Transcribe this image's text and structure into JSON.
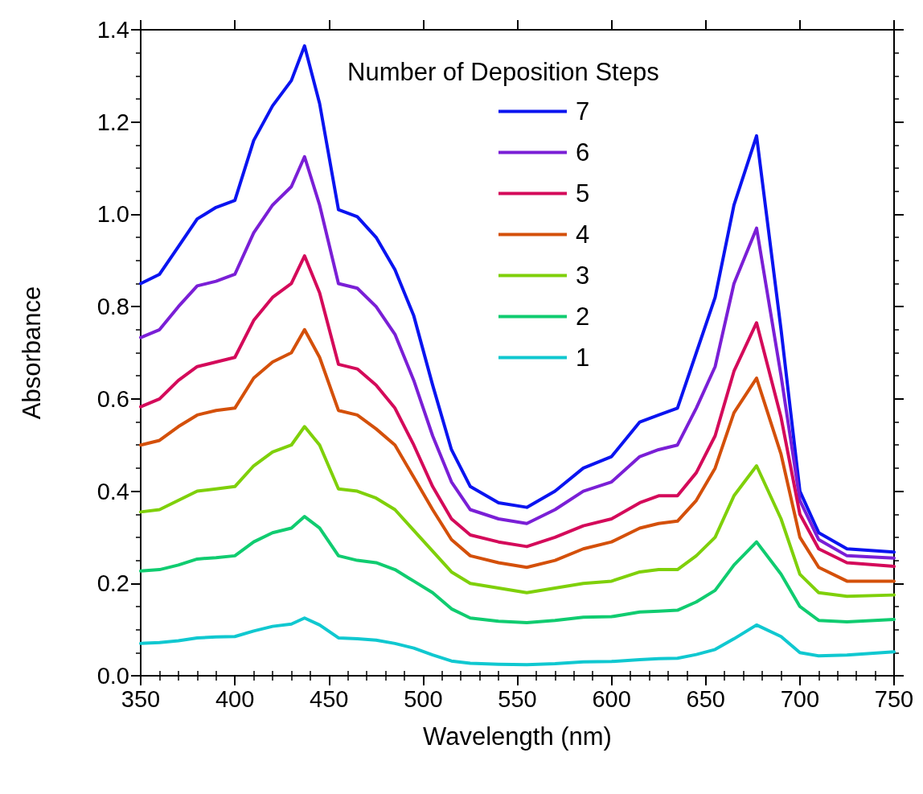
{
  "chart_data": {
    "type": "line",
    "xlabel": "Wavelength (nm)",
    "ylabel": "Absorbance",
    "legend_title": "Number of Deposition Steps",
    "legend": "top right",
    "grid": false,
    "marker": "none",
    "line_style": "solid",
    "x": [
      350,
      360,
      370,
      380,
      390,
      400,
      410,
      420,
      430,
      437,
      445,
      455,
      465,
      475,
      485,
      495,
      505,
      515,
      525,
      540,
      555,
      570,
      585,
      600,
      615,
      625,
      635,
      645,
      655,
      665,
      677,
      690,
      700,
      710,
      725,
      750
    ],
    "xlim": [
      350,
      750
    ],
    "xticks": [
      350,
      400,
      450,
      500,
      550,
      600,
      650,
      700,
      750
    ],
    "ylim": [
      0,
      1.4
    ],
    "yticks": [
      {
        "value": 0,
        "label": "0.0"
      },
      {
        "value": 0.2,
        "label": "0.2"
      },
      {
        "value": 0.4,
        "label": "0.4"
      },
      {
        "value": 0.6,
        "label": "0.6"
      },
      {
        "value": 0.8,
        "label": "0.8"
      },
      {
        "value": 1,
        "label": "1.0"
      },
      {
        "value": 1.2,
        "label": "1.2"
      },
      {
        "value": 1.4,
        "label": "1.4"
      }
    ],
    "series": [
      {
        "name": "7",
        "color": "#0a14f0",
        "values": [
          0.85,
          0.87,
          0.93,
          0.99,
          1.015,
          1.03,
          1.16,
          1.235,
          1.29,
          1.365,
          1.24,
          1.01,
          0.995,
          0.95,
          0.88,
          0.78,
          0.63,
          0.49,
          0.41,
          0.375,
          0.365,
          0.4,
          0.45,
          0.475,
          0.55,
          0.565,
          0.58,
          0.7,
          0.82,
          1.02,
          1.17,
          0.75,
          0.4,
          0.31,
          0.275,
          0.268
        ]
      },
      {
        "name": "6",
        "color": "#7a1fd6",
        "values": [
          0.733,
          0.75,
          0.8,
          0.845,
          0.855,
          0.87,
          0.96,
          1.02,
          1.06,
          1.125,
          1.02,
          0.85,
          0.84,
          0.8,
          0.74,
          0.64,
          0.52,
          0.42,
          0.36,
          0.34,
          0.33,
          0.36,
          0.4,
          0.42,
          0.475,
          0.49,
          0.5,
          0.58,
          0.67,
          0.85,
          0.97,
          0.65,
          0.38,
          0.295,
          0.26,
          0.255
        ]
      },
      {
        "name": "5",
        "color": "#d40a5a",
        "values": [
          0.583,
          0.6,
          0.64,
          0.67,
          0.68,
          0.69,
          0.77,
          0.82,
          0.85,
          0.91,
          0.83,
          0.675,
          0.665,
          0.63,
          0.58,
          0.5,
          0.41,
          0.34,
          0.305,
          0.29,
          0.28,
          0.3,
          0.325,
          0.34,
          0.375,
          0.39,
          0.39,
          0.44,
          0.52,
          0.66,
          0.765,
          0.56,
          0.35,
          0.275,
          0.245,
          0.237
        ]
      },
      {
        "name": "4",
        "color": "#d4500a",
        "values": [
          0.5,
          0.51,
          0.54,
          0.565,
          0.575,
          0.58,
          0.645,
          0.68,
          0.7,
          0.75,
          0.69,
          0.575,
          0.565,
          0.535,
          0.5,
          0.43,
          0.36,
          0.295,
          0.26,
          0.245,
          0.235,
          0.25,
          0.275,
          0.29,
          0.32,
          0.33,
          0.335,
          0.38,
          0.45,
          0.57,
          0.645,
          0.48,
          0.3,
          0.235,
          0.205,
          0.205
        ]
      },
      {
        "name": "3",
        "color": "#7fd00a",
        "values": [
          0.355,
          0.36,
          0.38,
          0.4,
          0.405,
          0.41,
          0.455,
          0.485,
          0.5,
          0.54,
          0.5,
          0.405,
          0.4,
          0.385,
          0.36,
          0.315,
          0.27,
          0.225,
          0.2,
          0.19,
          0.18,
          0.19,
          0.2,
          0.205,
          0.225,
          0.23,
          0.23,
          0.26,
          0.3,
          0.39,
          0.455,
          0.34,
          0.22,
          0.18,
          0.172,
          0.175
        ]
      },
      {
        "name": "2",
        "color": "#10cc70",
        "values": [
          0.227,
          0.23,
          0.24,
          0.253,
          0.256,
          0.26,
          0.29,
          0.31,
          0.32,
          0.345,
          0.32,
          0.26,
          0.25,
          0.245,
          0.23,
          0.205,
          0.18,
          0.145,
          0.125,
          0.118,
          0.115,
          0.12,
          0.127,
          0.128,
          0.138,
          0.14,
          0.142,
          0.16,
          0.185,
          0.24,
          0.29,
          0.22,
          0.15,
          0.12,
          0.117,
          0.122
        ]
      },
      {
        "name": "1",
        "color": "#10c8d0",
        "values": [
          0.07,
          0.072,
          0.076,
          0.082,
          0.084,
          0.085,
          0.097,
          0.107,
          0.112,
          0.125,
          0.11,
          0.082,
          0.08,
          0.077,
          0.07,
          0.06,
          0.045,
          0.032,
          0.027,
          0.025,
          0.024,
          0.026,
          0.03,
          0.031,
          0.035,
          0.037,
          0.038,
          0.046,
          0.057,
          0.08,
          0.11,
          0.085,
          0.05,
          0.043,
          0.045,
          0.052
        ]
      }
    ]
  }
}
